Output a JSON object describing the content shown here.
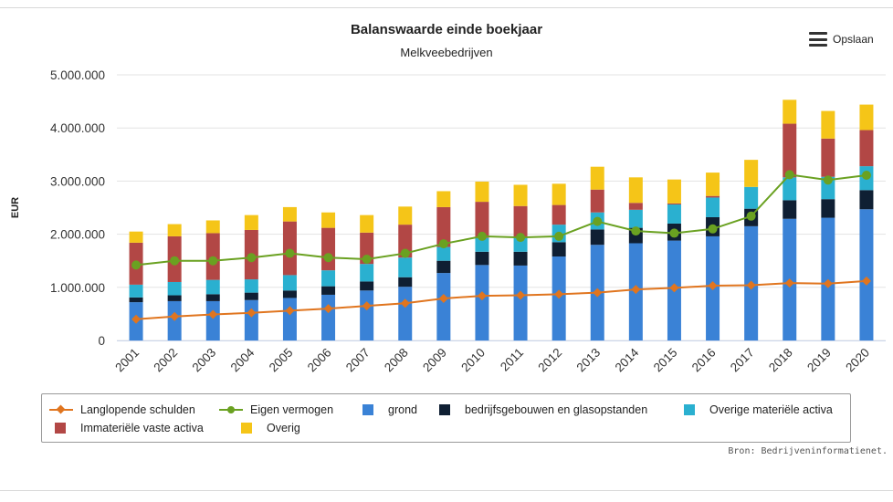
{
  "chart_data": {
    "type": "bar",
    "title": "Balanswaarde einde boekjaar",
    "subtitle": "Melkveebedrijven",
    "ylabel": "EUR",
    "ylim": [
      0,
      5000000
    ],
    "yticks": [
      "0",
      "1.000.000",
      "2.000.000",
      "3.000.000",
      "4.000.000",
      "5.000.000"
    ],
    "grid": true,
    "legend_position": "bottom",
    "categories": [
      "2001",
      "2002",
      "2003",
      "2004",
      "2005",
      "2006",
      "2007",
      "2008",
      "2009",
      "2010",
      "2011",
      "2012",
      "2013",
      "2014",
      "2015",
      "2016",
      "2017",
      "2018",
      "2019",
      "2020"
    ],
    "stacked_series": [
      {
        "name": "grond",
        "color": "#3a82d6",
        "values": [
          720000,
          740000,
          740000,
          760000,
          800000,
          860000,
          940000,
          1010000,
          1270000,
          1420000,
          1410000,
          1580000,
          1800000,
          1830000,
          1880000,
          1960000,
          2150000,
          2290000,
          2310000,
          2470000
        ]
      },
      {
        "name": "bedrijfsgebouwen en glasopstanden",
        "color": "#0f1f33",
        "values": [
          90000,
          110000,
          130000,
          140000,
          140000,
          160000,
          170000,
          180000,
          230000,
          250000,
          260000,
          270000,
          290000,
          290000,
          320000,
          360000,
          330000,
          350000,
          350000,
          360000
        ]
      },
      {
        "name": "Overige materiële activa",
        "color": "#2ab0d0",
        "values": [
          240000,
          250000,
          270000,
          250000,
          290000,
          300000,
          330000,
          370000,
          260000,
          260000,
          260000,
          330000,
          320000,
          340000,
          360000,
          370000,
          410000,
          430000,
          420000,
          450000
        ]
      },
      {
        "name": "Immateriële vaste activa",
        "color": "#b24745",
        "values": [
          790000,
          860000,
          880000,
          930000,
          1010000,
          800000,
          590000,
          620000,
          750000,
          680000,
          600000,
          370000,
          430000,
          130000,
          20000,
          30000,
          0,
          1010000,
          720000,
          680000
        ]
      },
      {
        "name": "Overig",
        "color": "#f5c518",
        "values": [
          210000,
          230000,
          240000,
          280000,
          270000,
          290000,
          330000,
          340000,
          300000,
          380000,
          400000,
          400000,
          430000,
          480000,
          450000,
          440000,
          510000,
          450000,
          520000,
          480000
        ]
      }
    ],
    "line_series": [
      {
        "name": "Langlopende schulden",
        "color": "#e0751f",
        "marker": "diamond",
        "values": [
          400000,
          450000,
          490000,
          520000,
          560000,
          600000,
          650000,
          700000,
          790000,
          840000,
          850000,
          870000,
          900000,
          960000,
          990000,
          1030000,
          1040000,
          1080000,
          1070000,
          1120000
        ]
      },
      {
        "name": "Eigen vermogen",
        "color": "#6aa121",
        "marker": "circle",
        "values": [
          1420000,
          1500000,
          1500000,
          1560000,
          1640000,
          1560000,
          1530000,
          1640000,
          1820000,
          1960000,
          1940000,
          1960000,
          2240000,
          2060000,
          2020000,
          2100000,
          2340000,
          3120000,
          3020000,
          3110000
        ]
      }
    ]
  },
  "legend": [
    {
      "label": "Langlopende schulden",
      "kind": "line",
      "marker": "diamond",
      "color": "#e0751f"
    },
    {
      "label": "Eigen vermogen",
      "kind": "line",
      "marker": "circle",
      "color": "#6aa121"
    },
    {
      "label": "grond",
      "kind": "square",
      "color": "#3a82d6"
    },
    {
      "label": "bedrijfsgebouwen en glasopstanden",
      "kind": "square",
      "color": "#0f1f33"
    },
    {
      "label": "Overige materiële activa",
      "kind": "square",
      "color": "#2ab0d0"
    },
    {
      "label": "Immateriële vaste activa",
      "kind": "square",
      "color": "#b24745"
    },
    {
      "label": "Overig",
      "kind": "square",
      "color": "#f5c518"
    }
  ],
  "export_label": "Opslaan",
  "export_icon": "menu-icon",
  "credits": "Bron: Bedrijveninformatienet."
}
